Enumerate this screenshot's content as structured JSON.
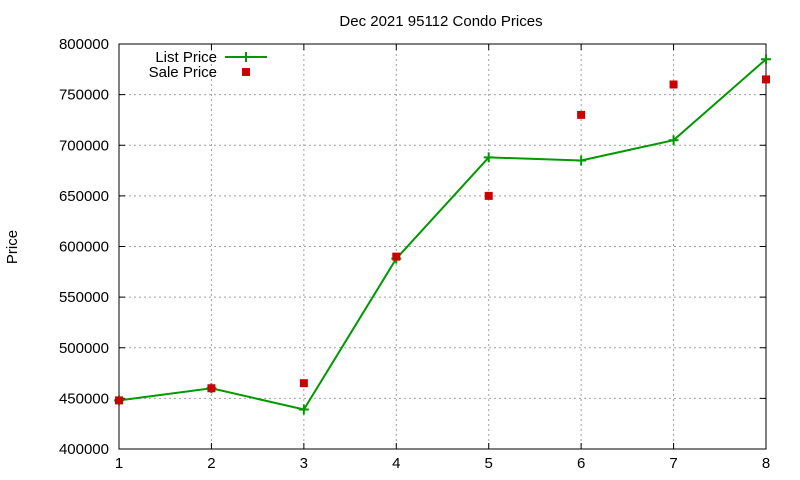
{
  "chart_data": {
    "type": "line",
    "title": "Dec 2021 95112 Condo Prices",
    "xlabel": "",
    "ylabel": "Price",
    "x": [
      1,
      2,
      3,
      4,
      5,
      6,
      7,
      8
    ],
    "xlim": [
      1,
      8
    ],
    "ylim": [
      400000,
      800000
    ],
    "xticks": [
      1,
      2,
      3,
      4,
      5,
      6,
      7,
      8
    ],
    "yticks": [
      400000,
      450000,
      500000,
      550000,
      600000,
      650000,
      700000,
      750000,
      800000
    ],
    "grid": true,
    "legend_position": "top-left",
    "series": [
      {
        "name": "List Price",
        "style": "line-with-plus-markers",
        "color": "#009900",
        "values": [
          448000,
          460000,
          439000,
          588000,
          688000,
          685000,
          705000,
          785000
        ]
      },
      {
        "name": "Sale Price",
        "style": "square-markers",
        "color": "#cc0000",
        "values": [
          448000,
          460000,
          465000,
          590000,
          650000,
          730000,
          760000,
          765000
        ]
      }
    ]
  }
}
